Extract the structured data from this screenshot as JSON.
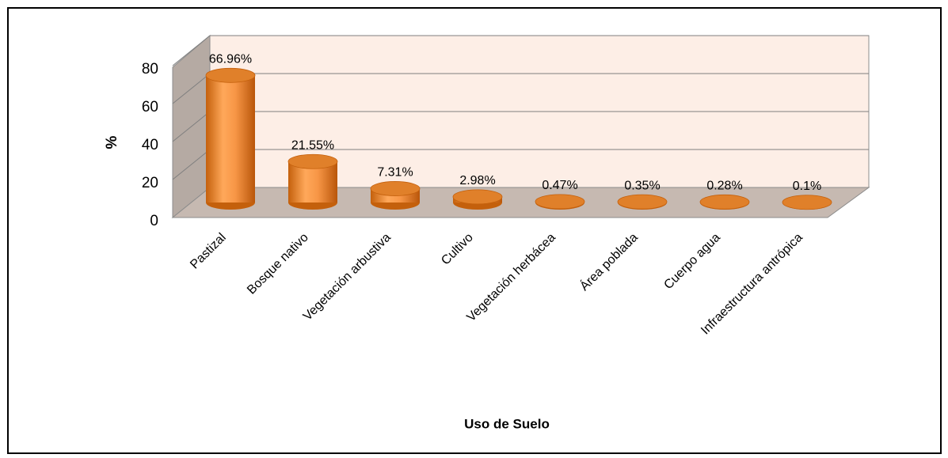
{
  "chart_data": {
    "type": "bar3d",
    "categories": [
      "Pastizal",
      "Bosque nativo",
      "Vegetación arbustiva",
      "Cultivo",
      "Vegetación herbácea",
      "Área poblada",
      "Cuerpo agua",
      "Infraestructura antrópica"
    ],
    "values": [
      66.96,
      21.55,
      7.31,
      2.98,
      0.47,
      0.35,
      0.28,
      0.1
    ],
    "value_labels": [
      "66.96%",
      "21.55%",
      "7.31%",
      "2.98%",
      "0.47%",
      "0.35%",
      "0.28%",
      "0.1%"
    ],
    "color": "#f79646",
    "ylim": [
      0,
      80
    ],
    "yticks": [
      0,
      20,
      40,
      60,
      80
    ],
    "grid": true,
    "ylabel": "%",
    "xlabel": "Uso de Suelo"
  }
}
